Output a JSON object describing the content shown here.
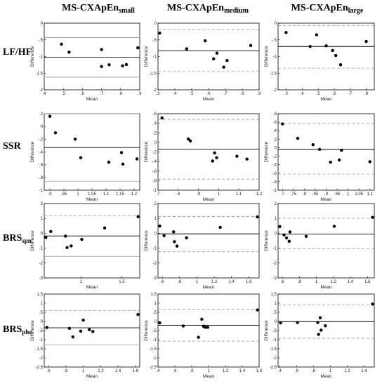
{
  "column_titles": [
    {
      "base": "MS-CXApEn",
      "sub": "small"
    },
    {
      "base": "MS-CXApEn",
      "sub": "medium"
    },
    {
      "base": "MS-CXApEn",
      "sub": "large"
    }
  ],
  "row_labels": [
    {
      "base": "LF/HF",
      "sub": ""
    },
    {
      "base": "SSR",
      "sub": ""
    },
    {
      "base": "BRS",
      "sub": "spn"
    },
    {
      "base": "BRS",
      "sub": "phe"
    }
  ],
  "axis_labels": {
    "x": "Mean",
    "y": "Difference"
  },
  "colors": {
    "points": "#000000",
    "mean_line": "#000000",
    "loa_line": "#9a9a9a",
    "axes": "#000000"
  },
  "chart_data": [
    {
      "type": "scatter",
      "row": 0,
      "col": 0,
      "xlabel": "Mean",
      "ylabel": "Difference",
      "xlim": [
        0.4,
        0.9
      ],
      "ylim": [
        -2,
        0
      ],
      "xticks": [
        0.4,
        0.5,
        0.6,
        0.7,
        0.8,
        0.9
      ],
      "yticks": [
        -2,
        -1.5,
        -1,
        -0.5,
        0
      ],
      "points": [
        [
          0.49,
          -0.63
        ],
        [
          0.53,
          -0.87
        ],
        [
          0.7,
          -0.79
        ],
        [
          0.7,
          -1.3
        ],
        [
          0.74,
          -1.25
        ],
        [
          0.81,
          -1.28
        ],
        [
          0.83,
          -1.24
        ],
        [
          0.89,
          -0.74
        ]
      ],
      "mean": -1.02,
      "upper_loa": -0.43,
      "lower_loa": -1.62,
      "loa_style": "solid"
    },
    {
      "type": "scatter",
      "row": 0,
      "col": 1,
      "xlabel": "Mean",
      "ylabel": "Difference",
      "xlim": [
        0.3,
        0.9
      ],
      "ylim": [
        -2,
        0
      ],
      "xticks": [
        0.3,
        0.4,
        0.5,
        0.6,
        0.7,
        0.8,
        0.9
      ],
      "yticks": [
        -2,
        -1.5,
        -1,
        -0.5,
        0
      ],
      "points": [
        [
          0.31,
          -0.3
        ],
        [
          0.47,
          -0.77
        ],
        [
          0.58,
          -0.53
        ],
        [
          0.63,
          -1.07
        ],
        [
          0.65,
          -0.9
        ],
        [
          0.69,
          -1.32
        ],
        [
          0.71,
          -1.12
        ],
        [
          0.85,
          -0.67
        ]
      ],
      "mean": -0.83,
      "upper_loa": -0.2,
      "lower_loa": -1.45,
      "loa_style": "dashed"
    },
    {
      "type": "scatter",
      "row": 0,
      "col": 2,
      "xlabel": "Mean",
      "ylabel": "Difference",
      "xlim": [
        0.25,
        0.85
      ],
      "ylim": [
        -2,
        0
      ],
      "xticks": [
        0.3,
        0.4,
        0.5,
        0.6,
        0.7,
        0.8
      ],
      "yticks": [
        -2,
        -1.5,
        -1,
        -0.5,
        0
      ],
      "points": [
        [
          0.3,
          -0.28
        ],
        [
          0.45,
          -0.7
        ],
        [
          0.49,
          -0.35
        ],
        [
          0.55,
          -0.68
        ],
        [
          0.59,
          -0.82
        ],
        [
          0.61,
          -0.97
        ],
        [
          0.64,
          -1.25
        ],
        [
          0.8,
          -0.55
        ]
      ],
      "mean": -0.7,
      "upper_loa": -0.07,
      "lower_loa": -1.35,
      "loa_style": "dashed"
    },
    {
      "type": "scatter",
      "row": 1,
      "col": 0,
      "xlabel": "Mean",
      "ylabel": "Difference",
      "xlim": [
        0.88,
        1.22
      ],
      "ylim": [
        -1,
        0.2
      ],
      "xticks": [
        0.9,
        0.95,
        1,
        1.05,
        1.1,
        1.15,
        1.2
      ],
      "yticks": [
        -1,
        -0.8,
        -0.6,
        -0.4,
        -0.2,
        0,
        0.2
      ],
      "points": [
        [
          0.9,
          0.16
        ],
        [
          0.92,
          -0.1
        ],
        [
          0.99,
          -0.2
        ],
        [
          1.01,
          -0.49
        ],
        [
          1.11,
          -0.56
        ],
        [
          1.155,
          -0.41
        ],
        [
          1.16,
          -0.59
        ],
        [
          1.21,
          -0.51
        ]
      ],
      "mean": -0.33,
      "upper_loa": 0.2,
      "lower_loa": -0.86,
      "loa_style": "solid"
    },
    {
      "type": "scatter",
      "row": 1,
      "col": 1,
      "xlabel": "Mean",
      "ylabel": "Difference",
      "xlim": [
        0.7,
        1.2
      ],
      "ylim": [
        -1,
        0.6
      ],
      "xticks": [
        0.7,
        0.8,
        0.9,
        1,
        1.1,
        1.2
      ],
      "yticks": [
        -1,
        -0.8,
        -0.6,
        -0.4,
        -0.2,
        0,
        0.2,
        0.4,
        0.6
      ],
      "points": [
        [
          0.72,
          0.51
        ],
        [
          0.85,
          0.07
        ],
        [
          0.86,
          0.03
        ],
        [
          0.97,
          -0.39
        ],
        [
          0.98,
          -0.22
        ],
        [
          0.99,
          -0.32
        ],
        [
          1.09,
          -0.29
        ],
        [
          1.14,
          -0.35
        ]
      ],
      "mean": -0.14,
      "upper_loa": 0.48,
      "lower_loa": -0.77,
      "loa_style": "dashed"
    },
    {
      "type": "scatter",
      "row": 1,
      "col": 2,
      "xlabel": "Mean",
      "ylabel": "Difference",
      "xlim": [
        0.68,
        1.12
      ],
      "ylim": [
        -1,
        0.8
      ],
      "xticks": [
        0.7,
        0.75,
        0.8,
        0.85,
        0.9,
        0.95,
        1,
        1.05,
        1.1
      ],
      "yticks": [
        -1,
        -0.8,
        -0.6,
        -0.4,
        -0.2,
        0,
        0.2,
        0.4,
        0.6,
        0.8
      ],
      "points": [
        [
          0.7,
          0.56
        ],
        [
          0.77,
          0.22
        ],
        [
          0.84,
          0.07
        ],
        [
          0.87,
          -0.04
        ],
        [
          0.92,
          -0.34
        ],
        [
          0.96,
          -0.29
        ],
        [
          0.97,
          -0.06
        ],
        [
          1.1,
          -0.33
        ]
      ],
      "mean": -0.04,
      "upper_loa": 0.57,
      "lower_loa": -0.62,
      "loa_style": "dashed"
    },
    {
      "type": "scatter",
      "row": 2,
      "col": 0,
      "xlabel": "Mean",
      "ylabel": "Difference",
      "xlim": [
        0.55,
        1.72
      ],
      "ylim": [
        -3,
        2
      ],
      "xticks": [
        1,
        1.5
      ],
      "yticks": [
        -3,
        -2,
        -1,
        0,
        1,
        2
      ],
      "points": [
        [
          0.57,
          -0.28
        ],
        [
          0.63,
          0.12
        ],
        [
          0.81,
          -0.19
        ],
        [
          0.83,
          -0.96
        ],
        [
          0.88,
          -0.85
        ],
        [
          1.01,
          -0.41
        ],
        [
          1.29,
          0.36
        ],
        [
          1.7,
          1.12
        ]
      ],
      "mean": -0.18,
      "upper_loa": 1.18,
      "lower_loa": -1.55,
      "loa_style": "mixed"
    },
    {
      "type": "scatter",
      "row": 2,
      "col": 1,
      "xlabel": "Mean",
      "ylabel": "Difference",
      "xlim": [
        0.55,
        1.72
      ],
      "ylim": [
        -3,
        2
      ],
      "xticks": [
        0.6,
        0.8,
        1,
        1.2,
        1.4,
        1.6
      ],
      "yticks": [
        -3,
        -2,
        -1,
        0,
        1,
        2
      ],
      "points": [
        [
          0.57,
          0.49
        ],
        [
          0.62,
          -0.16
        ],
        [
          0.73,
          0.1
        ],
        [
          0.74,
          -0.56
        ],
        [
          0.77,
          -0.86
        ],
        [
          0.88,
          -0.3
        ],
        [
          1.27,
          0.4
        ],
        [
          1.7,
          1.1
        ]
      ],
      "mean": -0.04,
      "upper_loa": 1.13,
      "lower_loa": -1.24,
      "loa_style": "dashed"
    },
    {
      "type": "scatter",
      "row": 2,
      "col": 2,
      "xlabel": "Mean",
      "ylabel": "Difference",
      "xlim": [
        0.55,
        1.68
      ],
      "ylim": [
        -3,
        2
      ],
      "xticks": [
        0.6,
        0.8,
        1,
        1.2,
        1.4,
        1.6
      ],
      "yticks": [
        -3,
        -2,
        -1,
        0,
        1,
        2
      ],
      "points": [
        [
          0.57,
          0.45
        ],
        [
          0.62,
          -0.11
        ],
        [
          0.65,
          -0.31
        ],
        [
          0.68,
          -0.54
        ],
        [
          0.69,
          0.09
        ],
        [
          0.88,
          -0.21
        ],
        [
          1.21,
          0.47
        ],
        [
          1.66,
          1.07
        ]
      ],
      "mean": -0.05,
      "upper_loa": 1.01,
      "lower_loa": -1.05,
      "loa_style": "dashed"
    },
    {
      "type": "scatter",
      "row": 3,
      "col": 0,
      "xlabel": "Mean",
      "ylabel": "Difference",
      "xlim": [
        0.55,
        1.65
      ],
      "ylim": [
        -2.5,
        1.5
      ],
      "xticks": [
        0.6,
        0.8,
        1,
        1.2,
        1.4,
        1.6
      ],
      "yticks": [
        -2.5,
        -2,
        -1.5,
        -1,
        -0.5,
        0,
        0.5,
        1,
        1.5
      ],
      "points": [
        [
          0.58,
          -0.33
        ],
        [
          0.84,
          -0.38
        ],
        [
          0.88,
          -0.85
        ],
        [
          0.97,
          -0.53
        ],
        [
          1.0,
          0.07
        ],
        [
          1.07,
          -0.45
        ],
        [
          1.11,
          -0.55
        ],
        [
          1.63,
          0.38
        ]
      ],
      "mean": -0.35,
      "upper_loa": 0.6,
      "lower_loa": -1.28,
      "loa_style": "mixed"
    },
    {
      "type": "scatter",
      "row": 3,
      "col": 1,
      "xlabel": "Mean",
      "ylabel": "Difference",
      "xlim": [
        0.4,
        1.6
      ],
      "ylim": [
        -2.5,
        1.5
      ],
      "xticks": [
        0.4,
        0.6,
        0.8,
        1,
        1.2,
        1.4,
        1.6
      ],
      "yticks": [
        -2.5,
        -2,
        -1.5,
        -1,
        -0.5,
        0,
        0.5,
        1,
        1.5
      ],
      "points": [
        [
          0.42,
          -0.08
        ],
        [
          0.7,
          -0.25
        ],
        [
          0.88,
          -0.87
        ],
        [
          0.92,
          0.12
        ],
        [
          0.94,
          -0.26
        ],
        [
          0.96,
          -0.32
        ],
        [
          0.99,
          -0.32
        ],
        [
          1.58,
          0.63
        ]
      ],
      "mean": -0.21,
      "upper_loa": 0.67,
      "lower_loa": -1.08,
      "loa_style": "dashed"
    },
    {
      "type": "scatter",
      "row": 3,
      "col": 2,
      "xlabel": "Mean",
      "ylabel": "Difference",
      "xlim": [
        0.38,
        1.52
      ],
      "ylim": [
        -2.5,
        1.5
      ],
      "xticks": [
        0.4,
        0.6,
        0.8,
        1,
        1.2,
        1.4
      ],
      "yticks": [
        -2.5,
        -2,
        -1.5,
        -1,
        -0.5,
        0,
        0.5,
        1,
        1.5
      ],
      "points": [
        [
          0.41,
          -0.08
        ],
        [
          0.61,
          -0.06
        ],
        [
          0.85,
          -0.06
        ],
        [
          0.86,
          -0.71
        ],
        [
          0.88,
          0.2
        ],
        [
          0.89,
          -0.48
        ],
        [
          0.94,
          -0.24
        ],
        [
          1.5,
          0.95
        ]
      ],
      "mean": -0.01,
      "upper_loa": 0.9,
      "lower_loa": -0.92,
      "loa_style": "dashed"
    }
  ]
}
